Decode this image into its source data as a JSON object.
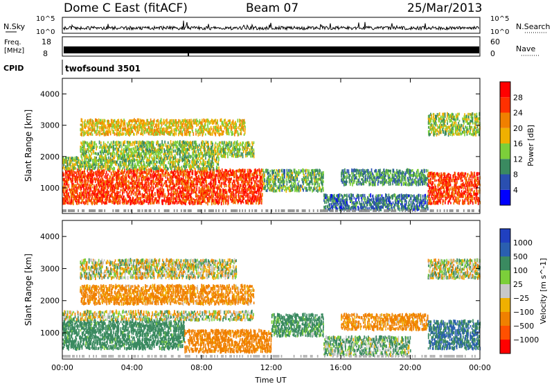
{
  "header": {
    "station": "Dome C East (fitACF)",
    "beam": "Beam 07",
    "date": "25/Mar/2013"
  },
  "top_panels": {
    "nsky_label": "N.Sky",
    "nsky_ticks": [
      "10^5",
      "10^0"
    ],
    "nsearch_label": "N.Search",
    "nsearch_ticks": [
      "10^5",
      "10^0"
    ],
    "freq_label_1": "Freq.",
    "freq_label_2": "[MHz]",
    "freq_ticks": [
      "18",
      "8"
    ],
    "nave_label": "Nave",
    "nave_ticks": [
      "60",
      "0"
    ],
    "cpid_label": "CPID",
    "cpid_value": "twofsound 3501"
  },
  "colors": {
    "power_scale": [
      "#0000ff",
      "#2a4fb0",
      "#3a8a60",
      "#7ccf3a",
      "#f0b000",
      "#f08000",
      "#ff3000",
      "#ff0000"
    ],
    "velocity_scale": [
      "#2040c0",
      "#2a5fb0",
      "#3a8a60",
      "#7ccf3a",
      "#c8c8c8",
      "#f0b000",
      "#f08000",
      "#ff5000",
      "#ff0000"
    ]
  },
  "chart_data": [
    {
      "type": "heatmap",
      "name": "power",
      "ylabel": "Slant Range [km]",
      "yticks": [
        "1000",
        "2000",
        "3000",
        "4000"
      ],
      "ylim": [
        180,
        4500
      ],
      "xticks": [
        "00:00",
        "04:00",
        "08:00",
        "12:00",
        "16:00",
        "20:00",
        "00:00"
      ],
      "xlim_hours": [
        0,
        24
      ],
      "colorbar_label": "Power [dB]",
      "colorbar_ticks": [
        "28",
        "24",
        "20",
        "16",
        "12",
        "8",
        "4"
      ],
      "bands": [
        {
          "t0": 0,
          "t1": 11.5,
          "r0": 500,
          "r1": 1600,
          "level": 26
        },
        {
          "t0": 0,
          "t1": 9,
          "r0": 1600,
          "r1": 2000,
          "level": 14
        },
        {
          "t0": 1,
          "t1": 11,
          "r0": 2000,
          "r1": 2500,
          "level": 14
        },
        {
          "t0": 1,
          "t1": 10.5,
          "r0": 2700,
          "r1": 3200,
          "level": 18
        },
        {
          "t0": 11.5,
          "t1": 15,
          "r0": 900,
          "r1": 1600,
          "level": 12
        },
        {
          "t0": 15,
          "t1": 21,
          "r0": 300,
          "r1": 800,
          "level": 8
        },
        {
          "t0": 16,
          "t1": 21,
          "r0": 1100,
          "r1": 1600,
          "level": 10
        },
        {
          "t0": 21,
          "t1": 24,
          "r0": 500,
          "r1": 1500,
          "level": 26
        },
        {
          "t0": 21,
          "t1": 24,
          "r0": 2700,
          "r1": 3400,
          "level": 14
        }
      ]
    },
    {
      "type": "heatmap",
      "name": "velocity",
      "ylabel": "Slant Range [km]",
      "yticks": [
        "1000",
        "2000",
        "3000",
        "4000"
      ],
      "ylim": [
        180,
        4500
      ],
      "xticks": [
        "00:00",
        "04:00",
        "08:00",
        "12:00",
        "16:00",
        "20:00",
        "00:00"
      ],
      "xlabel": "Time UT",
      "xlim_hours": [
        0,
        24
      ],
      "colorbar_label": "Velocity [m s^-1]",
      "colorbar_ticks": [
        "1000",
        "500",
        "100",
        "25",
        "−25",
        "−100",
        "−500",
        "−1000"
      ],
      "bands": [
        {
          "t0": 0,
          "t1": 7,
          "r0": 500,
          "r1": 1400,
          "value": 150
        },
        {
          "t0": 0,
          "t1": 11,
          "r0": 1400,
          "r1": 1700,
          "value": 0
        },
        {
          "t0": 7,
          "t1": 12,
          "r0": 400,
          "r1": 1100,
          "value": -150
        },
        {
          "t0": 1,
          "t1": 11,
          "r0": 1900,
          "r1": 2500,
          "value": -120
        },
        {
          "t0": 1,
          "t1": 10,
          "r0": 2700,
          "r1": 3300,
          "value": 0
        },
        {
          "t0": 12,
          "t1": 15,
          "r0": 900,
          "r1": 1600,
          "value": 120
        },
        {
          "t0": 15,
          "t1": 20,
          "r0": 300,
          "r1": 900,
          "value": 60
        },
        {
          "t0": 16,
          "t1": 21,
          "r0": 1100,
          "r1": 1600,
          "value": -120
        },
        {
          "t0": 21,
          "t1": 24,
          "r0": 500,
          "r1": 1400,
          "value": 300
        },
        {
          "t0": 21,
          "t1": 24,
          "r0": 2700,
          "r1": 3300,
          "value": 0
        }
      ]
    }
  ]
}
